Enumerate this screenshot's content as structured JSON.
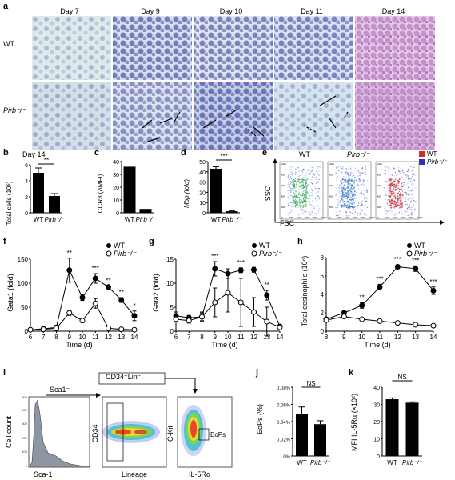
{
  "panels": {
    "a": {
      "label": "a",
      "days": [
        "Day 7",
        "Day 9",
        "Day 10",
        "Day 11",
        "Day 14"
      ],
      "rows": [
        "WT",
        "Pirb⁻/⁻"
      ]
    },
    "b": {
      "label": "b",
      "title": "Day 14",
      "ylabel": "Total cells (10⁶)",
      "sig": "**"
    },
    "c": {
      "label": "c",
      "ylabel": "CCR3 (ΔMFI)"
    },
    "d": {
      "label": "d",
      "ylabel": "Mbp (fold)",
      "sig": "***"
    },
    "e": {
      "label": "e",
      "titles": [
        "WT",
        "Pirb⁻/⁻"
      ],
      "ylabel": "SSC",
      "xlabel": "FSC",
      "legend": [
        "WT",
        "Pirb⁻/⁻"
      ],
      "ticks_y": [
        "1000",
        "800",
        "600",
        "400",
        "200",
        "0"
      ],
      "ticks_x": [
        "0",
        "200",
        "400",
        "600",
        "800",
        "1000"
      ],
      "legend_colors": [
        "#d42a2a",
        "#2c35b0"
      ]
    },
    "f": {
      "label": "f",
      "ylabel": "Gata1 (fold)",
      "xlabel": "Time (d)",
      "legend": [
        "WT",
        "Pirb⁻/⁻"
      ]
    },
    "g": {
      "label": "g",
      "ylabel": "Gata2 (fold)",
      "xlabel": "Time (d)",
      "legend": [
        "WT",
        "Pirb⁻/⁻"
      ]
    },
    "h": {
      "label": "h",
      "ylabel": "Total eosinophils (10⁶)",
      "xlabel": "Time (d)",
      "legend": [
        "WT",
        "Pirb⁻/⁻"
      ]
    },
    "i": {
      "label": "i",
      "hist_ylabel": "Cell count",
      "hist_xlabel": "Sca-1",
      "gate1": "Sca1⁻",
      "gate2": "CD34⁺Lin⁻",
      "p2_ylabel": "CD34",
      "p2_xlabel": "Lineage",
      "p3_ylabel": "C-Kit",
      "p3_xlabel": "IL-5Rα",
      "gate3": "EoPs",
      "hist_yticks": [
        "0",
        "100",
        "200",
        "300",
        "400",
        "500"
      ]
    },
    "j": {
      "label": "j",
      "ylabel": "EoPs (%)",
      "sig": "NS"
    },
    "k": {
      "label": "k",
      "ylabel": "MFI IL-5Rα (×10²)",
      "sig": "NS"
    }
  },
  "chart_data": [
    {
      "type": "bar",
      "id": "b",
      "categories": [
        "WT",
        "Pirb⁻/⁻"
      ],
      "values": [
        5.0,
        2.1
      ],
      "errors": [
        0.6,
        0.3
      ],
      "ylabel": "Total cells (10⁶)",
      "ylim": [
        0,
        6
      ],
      "yticks": [
        0,
        2,
        4,
        6
      ]
    },
    {
      "type": "bar",
      "id": "c",
      "categories": [
        "WT",
        "Pirb⁻/⁻"
      ],
      "values": [
        36,
        3
      ],
      "ylabel": "CCR3 (ΔMFI)",
      "ylim": [
        0,
        40
      ],
      "yticks": [
        0,
        10,
        20,
        30,
        40
      ]
    },
    {
      "type": "bar",
      "id": "d",
      "categories": [
        "WT",
        "Pirb⁻/⁻"
      ],
      "values": [
        43,
        1.5
      ],
      "errors": [
        2,
        0.3
      ],
      "ylabel": "Mbp (fold)",
      "ylim": [
        0,
        50
      ],
      "yticks": [
        0,
        10,
        20,
        30,
        40,
        50
      ]
    },
    {
      "type": "line",
      "id": "f",
      "x": [
        6,
        7,
        8,
        9,
        10,
        11,
        12,
        13,
        14
      ],
      "xlim": [
        6,
        14
      ],
      "ylim": [
        0,
        150
      ],
      "yticks": [
        0,
        50,
        100,
        150
      ],
      "series": [
        {
          "name": "WT",
          "values": [
            3,
            5,
            8,
            127,
            70,
            110,
            92,
            65,
            32
          ],
          "errors": [
            0,
            0,
            3,
            25,
            6,
            10,
            0,
            5,
            10
          ]
        },
        {
          "name": "Pirb⁻/⁻",
          "values": [
            3,
            4,
            6,
            38,
            22,
            58,
            6,
            4,
            3
          ],
          "errors": [
            0,
            0,
            2,
            5,
            4,
            10,
            0,
            0,
            0
          ]
        }
      ],
      "ylabel": "Gata1 (fold)",
      "xlabel": "Time (d)"
    },
    {
      "type": "line",
      "id": "g",
      "x": [
        6,
        7,
        8,
        9,
        10,
        11,
        12,
        13,
        14
      ],
      "xlim": [
        6,
        14
      ],
      "ylim": [
        0,
        15
      ],
      "yticks": [
        0,
        5,
        10,
        15
      ],
      "series": [
        {
          "name": "WT",
          "values": [
            3.2,
            2.8,
            3.0,
            13,
            12,
            12.7,
            12.8,
            7.5,
            1.0
          ],
          "errors": [
            0.8,
            0.5,
            0.8,
            1.5,
            1.0,
            0.5,
            0.5,
            1.0,
            0.3
          ]
        },
        {
          "name": "Pirb⁻/⁻",
          "values": [
            2.5,
            2.2,
            3.0,
            6,
            8,
            6,
            4,
            2,
            0.8
          ],
          "errors": [
            0.5,
            0.5,
            1.0,
            3.0,
            4.0,
            5.0,
            3.0,
            3.0,
            0.3
          ]
        }
      ],
      "ylabel": "Gata2 (fold)",
      "xlabel": "Time (d)"
    },
    {
      "type": "line",
      "id": "h",
      "x": [
        8,
        9,
        10,
        11,
        12,
        13,
        14
      ],
      "xlim": [
        8,
        14
      ],
      "ylim": [
        0,
        8
      ],
      "yticks": [
        0,
        2,
        4,
        6,
        8
      ],
      "series": [
        {
          "name": "WT",
          "values": [
            1.3,
            2.0,
            2.8,
            4.8,
            7.0,
            6.8,
            4.4
          ],
          "errors": [
            0.2,
            0.3,
            0.3,
            0.3,
            0.2,
            0.3,
            0.4
          ]
        },
        {
          "name": "Pirb⁻/⁻",
          "values": [
            1.2,
            1.6,
            1.3,
            1.1,
            0.9,
            0.7,
            0.6
          ],
          "errors": [
            0.1,
            0.1,
            0.1,
            0.1,
            0.1,
            0.1,
            0.1
          ]
        }
      ],
      "ylabel": "Total eosinophils (10⁶)",
      "xlabel": "Time (d)"
    },
    {
      "type": "bar",
      "id": "j",
      "categories": [
        "WT",
        "Pirb⁻/⁻"
      ],
      "values": [
        0.049,
        0.037
      ],
      "errors": [
        0.008,
        0.004
      ],
      "ylabel": "EoPs (%)",
      "ylim": [
        0,
        0.08
      ],
      "yticks": [
        "0%",
        "0.02%",
        "0.04%",
        "0.06%",
        "0.08%"
      ]
    },
    {
      "type": "bar",
      "id": "k",
      "categories": [
        "WT",
        "Pirb⁻/⁻"
      ],
      "values": [
        33,
        31
      ],
      "errors": [
        0.8,
        0.5
      ],
      "ylabel": "MFI IL-5Rα (×10²)",
      "ylim": [
        0,
        40
      ],
      "yticks": [
        0,
        10,
        20,
        30,
        40
      ]
    }
  ]
}
